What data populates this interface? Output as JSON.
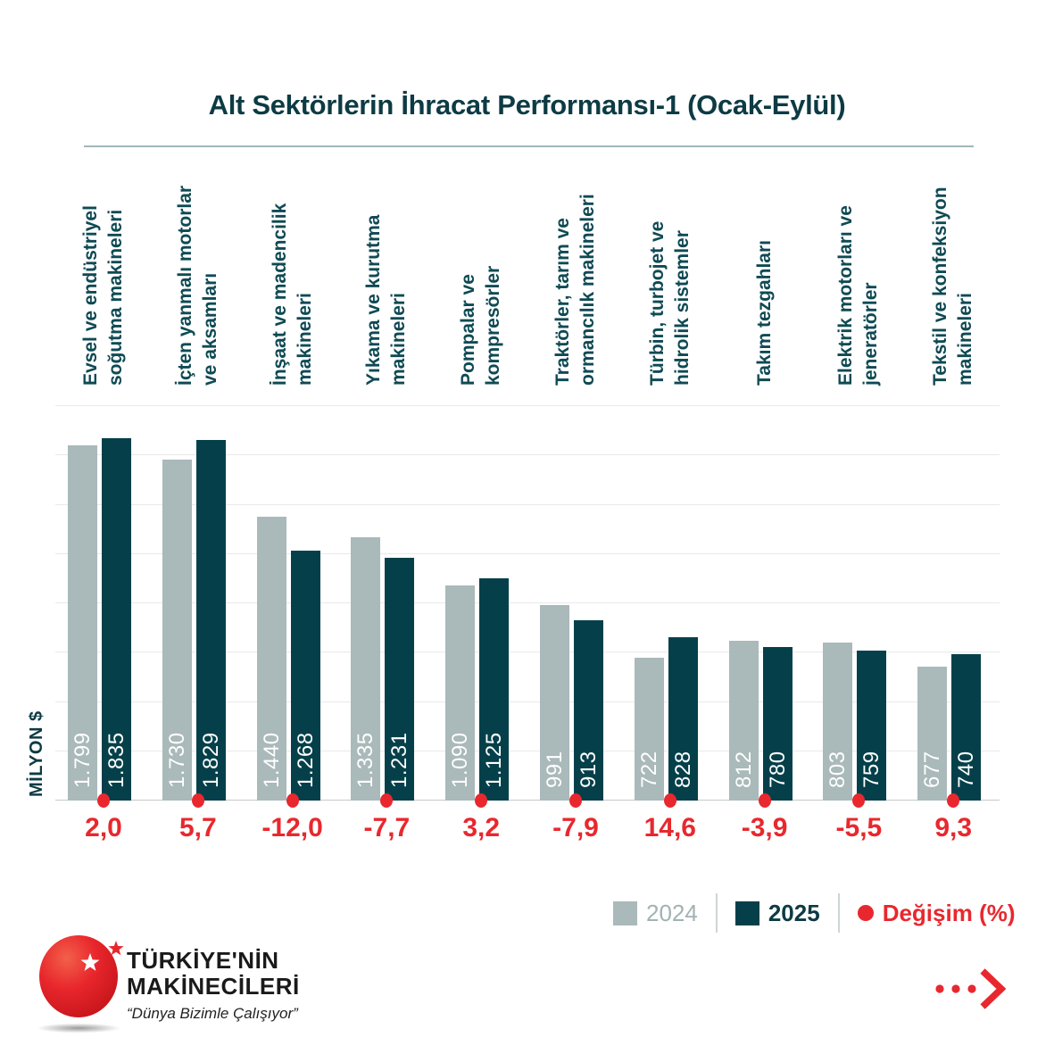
{
  "title": "Alt Sektörlerin İhracat Performansı-1 (Ocak-Eylül)",
  "y_axis_label": "MİLYON $",
  "legend": {
    "year1": "2024",
    "year2": "2025",
    "change": "Değişim (%)"
  },
  "logo": {
    "line1": "TÜRKİYE'NİN",
    "line2": "MAKİNECİLERİ",
    "tagline": "“Dünya Bizimle Çalışıyor”"
  },
  "icons": {
    "more_arrow": "three-dots-chevron-right"
  },
  "colors": {
    "bar_2024": "#aab9b9",
    "bar_2025": "#05404a",
    "change_red": "#e8282e",
    "title_teal": "#0d3b44",
    "category_teal": "#0f4a54",
    "legend_gray_text": "#a2b2b2",
    "gridline": "#e9e9e9",
    "baseline": "#c8c8c8",
    "title_rule": "#7fa0a6",
    "logo_red": "#e31e25"
  },
  "chart_data": {
    "type": "bar",
    "title": "Alt Sektörlerin İhracat Performansı-1 (Ocak-Eylül)",
    "xlabel": "",
    "ylabel": "MİLYON $",
    "ylim": [
      0,
      2000
    ],
    "gridline_step": 250,
    "grid": true,
    "legend_position": "bottom-right",
    "categories": [
      "Evsel ve endüstriyel soğutma makineleri",
      "İçten yanmalı motorlar ve aksamları",
      "İnşaat ve madencilik makineleri",
      "Yıkama ve kurutma makineleri",
      "Pompalar ve kompresörler",
      "Traktörler, tarım ve ormancılık makineleri",
      "Türbin, turbojet ve hidrolik sistemler",
      "Takım tezgahları",
      "Elektrik motorları ve jeneratörler",
      "Tekstil ve konfeksiyon makineleri"
    ],
    "series": [
      {
        "name": "2024",
        "values": [
          1799,
          1730,
          1440,
          1335,
          1090,
          991,
          722,
          812,
          803,
          677
        ]
      },
      {
        "name": "2025",
        "values": [
          1835,
          1829,
          1268,
          1231,
          1125,
          913,
          828,
          780,
          759,
          740
        ]
      }
    ],
    "change_percent": [
      2.0,
      5.7,
      -12.0,
      -7.7,
      3.2,
      -7.9,
      14.6,
      -3.9,
      -5.5,
      9.3
    ],
    "groups": [
      {
        "category_lines": [
          "Evsel ve endüstriyel",
          "soğutma makineleri"
        ],
        "value_2024": 1799,
        "value_2025": 1835,
        "label_2024": "1.799",
        "label_2025": "1.835",
        "change": "2,0"
      },
      {
        "category_lines": [
          "İçten yanmalı motorlar",
          "ve aksamları"
        ],
        "value_2024": 1730,
        "value_2025": 1829,
        "label_2024": "1.730",
        "label_2025": "1.829",
        "change": "5,7"
      },
      {
        "category_lines": [
          "İnşaat ve madencilik",
          "makineleri"
        ],
        "value_2024": 1440,
        "value_2025": 1268,
        "label_2024": "1.440",
        "label_2025": "1.268",
        "change": "-12,0"
      },
      {
        "category_lines": [
          "Yıkama ve kurutma",
          "makineleri"
        ],
        "value_2024": 1335,
        "value_2025": 1231,
        "label_2024": "1.335",
        "label_2025": "1.231",
        "change": "-7,7"
      },
      {
        "category_lines": [
          "Pompalar ve",
          "kompresörler"
        ],
        "value_2024": 1090,
        "value_2025": 1125,
        "label_2024": "1.090",
        "label_2025": "1.125",
        "change": "3,2"
      },
      {
        "category_lines": [
          "Traktörler, tarım ve",
          "ormancılık makineleri"
        ],
        "value_2024": 991,
        "value_2025": 913,
        "label_2024": "991",
        "label_2025": "913",
        "change": "-7,9"
      },
      {
        "category_lines": [
          "Türbin, turbojet ve",
          "hidrolik sistemler"
        ],
        "value_2024": 722,
        "value_2025": 828,
        "label_2024": "722",
        "label_2025": "828",
        "change": "14,6"
      },
      {
        "category_lines": [
          "Takım tezgahları"
        ],
        "value_2024": 812,
        "value_2025": 780,
        "label_2024": "812",
        "label_2025": "780",
        "change": "-3,9"
      },
      {
        "category_lines": [
          "Elektrik motorları ve",
          "jeneratörler"
        ],
        "value_2024": 803,
        "value_2025": 759,
        "label_2024": "803",
        "label_2025": "759",
        "change": "-5,5"
      },
      {
        "category_lines": [
          "Tekstil ve konfeksiyon",
          "makineleri"
        ],
        "value_2024": 677,
        "value_2025": 740,
        "label_2024": "677",
        "label_2025": "740",
        "change": "9,3"
      }
    ]
  }
}
